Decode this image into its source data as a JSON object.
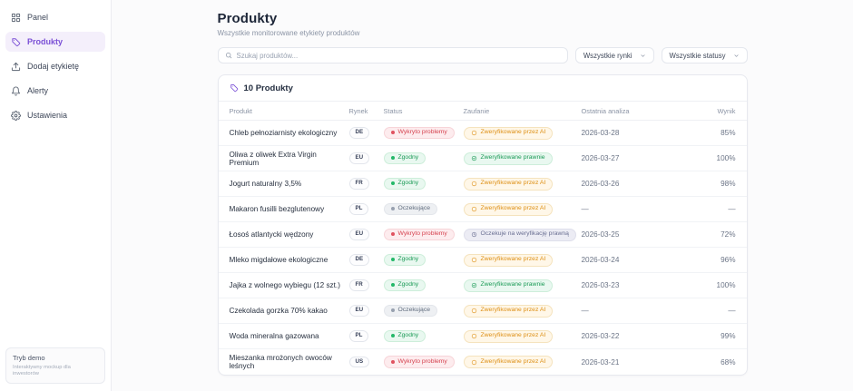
{
  "sidebar": {
    "items": [
      {
        "label": "Panel",
        "icon": "dashboard-icon",
        "active": false
      },
      {
        "label": "Produkty",
        "icon": "tag-icon",
        "active": true
      },
      {
        "label": "Dodaj etykietę",
        "icon": "upload-icon",
        "active": false
      },
      {
        "label": "Alerty",
        "icon": "bell-icon",
        "active": false
      },
      {
        "label": "Ustawienia",
        "icon": "gear-icon",
        "active": false
      }
    ],
    "demo_box": {
      "title": "Tryb demo",
      "subtitle": "Interaktywny mockup dla inwestorów"
    }
  },
  "header": {
    "title": "Produkty",
    "subtitle": "Wszystkie monitorowane etykiety produktów"
  },
  "toolbar": {
    "search_placeholder": "Szukaj produktów...",
    "filters": [
      {
        "label": "Wszystkie rynki"
      },
      {
        "label": "Wszystkie statusy"
      }
    ]
  },
  "table": {
    "card_title": "10 Produkty",
    "card_icon": "tag-icon",
    "columns": [
      "Produkt",
      "Rynek",
      "Status",
      "Zaufanie",
      "Ostatnia analiza",
      "Wynik"
    ],
    "rows": [
      {
        "product": "Chleb pełnoziarnisty ekologiczny",
        "market": "DE",
        "status": "Wykryto problemy",
        "status_type": "issues",
        "trust": "Zweryfikowane przez AI",
        "trust_type": "ai",
        "date": "2026-03-28",
        "score": "85%"
      },
      {
        "product": "Oliwa z oliwek Extra Virgin Premium",
        "market": "EU",
        "status": "Zgodny",
        "status_type": "ok",
        "trust": "Zweryfikowane prawnie",
        "trust_type": "legal",
        "date": "2026-03-27",
        "score": "100%"
      },
      {
        "product": "Jogurt naturalny 3,5%",
        "market": "FR",
        "status": "Zgodny",
        "status_type": "ok",
        "trust": "Zweryfikowane przez AI",
        "trust_type": "ai",
        "date": "2026-03-26",
        "score": "98%"
      },
      {
        "product": "Makaron fusilli bezglutenowy",
        "market": "PL",
        "status": "Oczekujące",
        "status_type": "pending",
        "trust": "Zweryfikowane przez AI",
        "trust_type": "ai",
        "date": "—",
        "score": "—"
      },
      {
        "product": "Łosoś atlantycki wędzony",
        "market": "EU",
        "status": "Wykryto problemy",
        "status_type": "issues",
        "trust": "Oczekuje na weryfikację prawną",
        "trust_type": "pending_legal",
        "date": "2026-03-25",
        "score": "72%"
      },
      {
        "product": "Mleko migdałowe ekologiczne",
        "market": "DE",
        "status": "Zgodny",
        "status_type": "ok",
        "trust": "Zweryfikowane przez AI",
        "trust_type": "ai",
        "date": "2026-03-24",
        "score": "96%"
      },
      {
        "product": "Jajka z wolnego wybiegu (12 szt.)",
        "market": "FR",
        "status": "Zgodny",
        "status_type": "ok",
        "trust": "Zweryfikowane prawnie",
        "trust_type": "legal",
        "date": "2026-03-23",
        "score": "100%"
      },
      {
        "product": "Czekolada gorzka 70% kakao",
        "market": "EU",
        "status": "Oczekujące",
        "status_type": "pending",
        "trust": "Zweryfikowane przez AI",
        "trust_type": "ai",
        "date": "—",
        "score": "—"
      },
      {
        "product": "Woda mineralna gazowana",
        "market": "PL",
        "status": "Zgodny",
        "status_type": "ok",
        "trust": "Zweryfikowane przez AI",
        "trust_type": "ai",
        "date": "2026-03-22",
        "score": "99%"
      },
      {
        "product": "Mieszanka mrożonych owoców leśnych",
        "market": "US",
        "status": "Wykryto problemy",
        "status_type": "issues",
        "trust": "Zweryfikowane przez AI",
        "trust_type": "ai",
        "date": "2026-03-21",
        "score": "68%"
      }
    ]
  },
  "colors": {
    "accent_purple": "#7a4fd6",
    "status_issue": "#d5424f",
    "status_ok": "#199a55",
    "status_pending": "#5f6b7d",
    "trust_ai": "#dd8f14",
    "trust_pending_legal": "#6a6f92"
  }
}
